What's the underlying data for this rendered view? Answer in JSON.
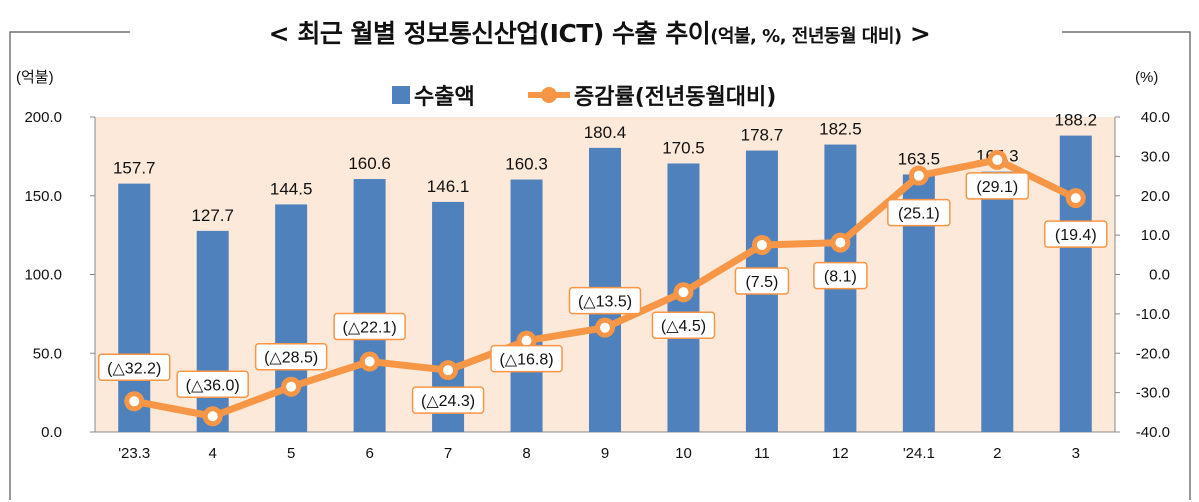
{
  "chart_data": {
    "type": "bar+line",
    "title": "< 최근 월별 정보통신산업(ICT) 수출 추이",
    "title_units": "(억불, %, 전년동월 대비)",
    "title_end": ">",
    "left_unit": "(억불)",
    "right_unit": "(%)",
    "categories": [
      "'23.3",
      "4",
      "5",
      "6",
      "7",
      "8",
      "9",
      "10",
      "11",
      "12",
      "'24.1",
      "2",
      "3"
    ],
    "left_ylim": [
      0,
      200
    ],
    "left_ticks": [
      "0.0",
      "50.0",
      "100.0",
      "150.0",
      "200.0"
    ],
    "right_ylim": [
      -40,
      40
    ],
    "right_ticks": [
      "-40.0",
      "-30.0",
      "-20.0",
      "-10.0",
      "0.0",
      "10.0",
      "20.0",
      "30.0",
      "40.0"
    ],
    "legend_placement": "top-center",
    "series": [
      {
        "name": "수출액",
        "type": "bar",
        "axis": "left",
        "color": "#4f81bd",
        "values": [
          157.7,
          127.7,
          144.5,
          160.6,
          146.1,
          160.3,
          180.4,
          170.5,
          178.7,
          182.5,
          163.5,
          165.3,
          188.2
        ],
        "labels": [
          "157.7",
          "127.7",
          "144.5",
          "160.6",
          "146.1",
          "160.3",
          "180.4",
          "170.5",
          "178.7",
          "182.5",
          "163.5",
          "165.3",
          "188.2"
        ]
      },
      {
        "name": "증감률(전년동월대비)",
        "type": "line",
        "axis": "right",
        "color": "#f79646",
        "values": [
          -32.2,
          -36.0,
          -28.5,
          -22.1,
          -24.3,
          -16.8,
          -13.5,
          -4.5,
          7.5,
          8.1,
          25.1,
          29.1,
          19.4
        ],
        "labels": [
          "(△32.2)",
          "(△36.0)",
          "(△28.5)",
          "(△22.1)",
          "(△24.3)",
          "(△16.8)",
          "(△13.5)",
          "(△4.5)",
          "(7.5)",
          "(8.1)",
          "(25.1)",
          "(29.1)",
          "(19.4)"
        ]
      }
    ],
    "plot_background": "#fde9d9"
  }
}
